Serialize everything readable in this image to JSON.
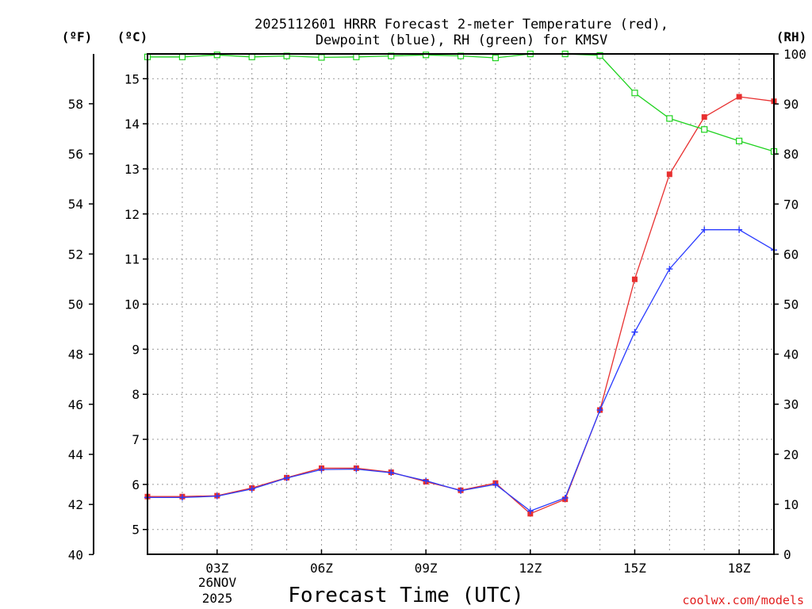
{
  "chart_data": {
    "type": "line",
    "title_line1": "2025112601 HRRR Forecast 2-meter Temperature (red),",
    "title_line2": "Dewpoint (blue), RH (green) for KMSV",
    "xlabel": "Forecast Time (UTC)",
    "credit": "coolwx.com/models",
    "date_label_1": "26NOV",
    "date_label_2": "2025",
    "units": {
      "fahrenheit": "(ºF)",
      "celsius": "(ºC)",
      "rh": "(RH)"
    },
    "x_hours": [
      1,
      2,
      3,
      4,
      5,
      6,
      7,
      8,
      9,
      10,
      11,
      12,
      13,
      14,
      15,
      16,
      17,
      18,
      19
    ],
    "x_range": [
      1,
      19
    ],
    "x_ticks": [
      {
        "hour": 3,
        "label": "03Z"
      },
      {
        "hour": 6,
        "label": "06Z"
      },
      {
        "hour": 9,
        "label": "09Z"
      },
      {
        "hour": 12,
        "label": "12Z"
      },
      {
        "hour": 15,
        "label": "15Z"
      },
      {
        "hour": 18,
        "label": "18Z"
      }
    ],
    "celsius_range": [
      4.45,
      15.55
    ],
    "celsius_ticks": [
      "5",
      "6",
      "7",
      "8",
      "9",
      "10",
      "11",
      "12",
      "13",
      "14",
      "15"
    ],
    "fahrenheit_ticks": [
      "40",
      "42",
      "44",
      "46",
      "48",
      "50",
      "52",
      "54",
      "56",
      "58"
    ],
    "rh_range": [
      0,
      100
    ],
    "rh_ticks": [
      "0",
      "10",
      "20",
      "30",
      "40",
      "50",
      "60",
      "70",
      "80",
      "90",
      "100"
    ],
    "series": [
      {
        "name": "Temperature",
        "unit": "C",
        "axis": "celsius",
        "color": "#e83030",
        "marker": "filled-square",
        "values": [
          5.73,
          5.73,
          5.75,
          5.92,
          6.15,
          6.36,
          6.36,
          6.27,
          6.06,
          5.87,
          6.03,
          5.35,
          5.67,
          7.65,
          10.55,
          12.88,
          14.15,
          14.6,
          14.5
        ]
      },
      {
        "name": "Dewpoint",
        "unit": "C",
        "axis": "celsius",
        "color": "#2a3bff",
        "marker": "plus",
        "values": [
          5.71,
          5.71,
          5.74,
          5.9,
          6.14,
          6.33,
          6.34,
          6.26,
          6.08,
          5.86,
          6.0,
          5.41,
          5.7,
          7.65,
          9.38,
          10.78,
          11.65,
          11.65,
          11.2
        ]
      },
      {
        "name": "RH",
        "unit": "%",
        "axis": "rh",
        "color": "#1ed21e",
        "marker": "open-square",
        "values": [
          99.4,
          99.4,
          99.8,
          99.4,
          99.6,
          99.3,
          99.4,
          99.6,
          99.8,
          99.6,
          99.2,
          100,
          100,
          99.7,
          92.2,
          87.1,
          84.9,
          82.6,
          80.5
        ]
      }
    ]
  }
}
